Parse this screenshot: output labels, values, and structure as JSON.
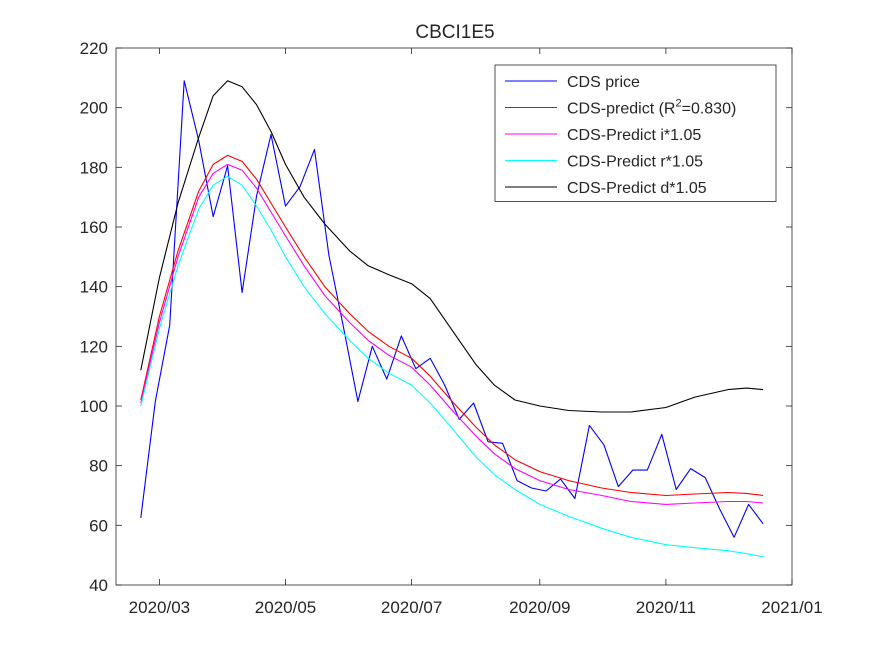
{
  "chart_data": {
    "type": "line",
    "title": "CBCI1E5",
    "xlabel": "",
    "ylabel": "",
    "x_unit": "date",
    "xlim": [
      "2020-02-09",
      "2021-01-01"
    ],
    "ylim": [
      40,
      220
    ],
    "yticks": [
      40,
      60,
      80,
      100,
      120,
      140,
      160,
      180,
      200,
      220
    ],
    "xticks": [
      "2020-03-01",
      "2020-05-01",
      "2020-07-01",
      "2020-09-01",
      "2020-11-01",
      "2021-01-01"
    ],
    "xtick_labels": [
      "2020/03",
      "2020/05",
      "2020/07",
      "2020/09",
      "2020/11",
      "2021/01"
    ],
    "grid": false,
    "legend_position": "top-right",
    "legend_r2": "0.830",
    "series": [
      {
        "name": "CDS price",
        "legend": {
          "before": "CDS price",
          "sup": "",
          "after": ""
        },
        "color": "#0000ff",
        "x": [
          "2020-02-21",
          "2020-02-28",
          "2020-03-06",
          "2020-03-13",
          "2020-03-20",
          "2020-03-27",
          "2020-04-03",
          "2020-04-10",
          "2020-04-17",
          "2020-04-24",
          "2020-05-01",
          "2020-05-08",
          "2020-05-15",
          "2020-05-22",
          "2020-05-29",
          "2020-06-05",
          "2020-06-12",
          "2020-06-19",
          "2020-06-26",
          "2020-07-03",
          "2020-07-10",
          "2020-07-17",
          "2020-07-24",
          "2020-07-31",
          "2020-08-07",
          "2020-08-14",
          "2020-08-21",
          "2020-08-28",
          "2020-09-04",
          "2020-09-11",
          "2020-09-18",
          "2020-09-25",
          "2020-10-02",
          "2020-10-09",
          "2020-10-16",
          "2020-10-23",
          "2020-10-30",
          "2020-11-06",
          "2020-11-13",
          "2020-11-20",
          "2020-11-27",
          "2020-12-04",
          "2020-12-11",
          "2020-12-18"
        ],
        "y": [
          62.5,
          101.5,
          127,
          209,
          189,
          163.5,
          180.5,
          138,
          170.5,
          191,
          167,
          173.5,
          186,
          150.5,
          126.5,
          101.5,
          120,
          109,
          123.5,
          112.5,
          116,
          107,
          95.5,
          101,
          88,
          87.5,
          75,
          72.5,
          71.5,
          75.5,
          69,
          93.5,
          87,
          73,
          78.5,
          78.5,
          90.5,
          72,
          79,
          76,
          65.5,
          56,
          67,
          60.5
        ]
      },
      {
        "name": "CDS-predict",
        "legend": {
          "before": "CDS-predict (R",
          "sup": "2",
          "after": "=0.830)"
        },
        "color": "#ff0000",
        "x": [
          "2020-02-21",
          "2020-03-01",
          "2020-03-10",
          "2020-03-20",
          "2020-03-27",
          "2020-04-03",
          "2020-04-10",
          "2020-04-17",
          "2020-04-24",
          "2020-05-01",
          "2020-05-10",
          "2020-05-20",
          "2020-06-01",
          "2020-06-10",
          "2020-06-20",
          "2020-07-01",
          "2020-07-10",
          "2020-07-20",
          "2020-08-01",
          "2020-08-10",
          "2020-08-20",
          "2020-09-01",
          "2020-09-15",
          "2020-10-01",
          "2020-10-15",
          "2020-11-01",
          "2020-11-15",
          "2020-12-01",
          "2020-12-10",
          "2020-12-18"
        ],
        "y": [
          102,
          130,
          152,
          172,
          181,
          184,
          182,
          176,
          168,
          160,
          150,
          140,
          131,
          125,
          120,
          116,
          110,
          102,
          93,
          87,
          82,
          78,
          75,
          72.5,
          71,
          70,
          70.5,
          71,
          70.7,
          70
        ]
      },
      {
        "name": "CDS-Predict i*1.05",
        "legend": {
          "before": "CDS-Predict i*1.05",
          "sup": "",
          "after": ""
        },
        "color": "#ff00ff",
        "x": [
          "2020-02-21",
          "2020-03-01",
          "2020-03-10",
          "2020-03-20",
          "2020-03-27",
          "2020-04-03",
          "2020-04-10",
          "2020-04-17",
          "2020-04-24",
          "2020-05-01",
          "2020-05-10",
          "2020-05-20",
          "2020-06-01",
          "2020-06-10",
          "2020-06-20",
          "2020-07-01",
          "2020-07-10",
          "2020-07-20",
          "2020-08-01",
          "2020-08-10",
          "2020-08-20",
          "2020-09-01",
          "2020-09-15",
          "2020-10-01",
          "2020-10-15",
          "2020-11-01",
          "2020-11-15",
          "2020-12-01",
          "2020-12-10",
          "2020-12-18"
        ],
        "y": [
          101,
          128,
          150,
          170,
          178,
          181,
          179,
          173,
          165,
          157,
          147,
          137,
          128,
          122,
          117,
          113,
          107,
          99,
          90,
          84,
          79,
          75,
          72,
          70,
          68,
          67,
          67.5,
          68,
          68,
          67.5
        ]
      },
      {
        "name": "CDS-Predict r*1.05",
        "legend": {
          "before": "CDS-Predict r*1.05",
          "sup": "",
          "after": ""
        },
        "color": "#00ffff",
        "x": [
          "2020-02-21",
          "2020-03-01",
          "2020-03-10",
          "2020-03-20",
          "2020-03-27",
          "2020-04-03",
          "2020-04-10",
          "2020-04-17",
          "2020-04-24",
          "2020-05-01",
          "2020-05-10",
          "2020-05-20",
          "2020-06-01",
          "2020-06-10",
          "2020-06-20",
          "2020-07-01",
          "2020-07-10",
          "2020-07-20",
          "2020-08-01",
          "2020-08-10",
          "2020-08-20",
          "2020-09-01",
          "2020-09-15",
          "2020-10-01",
          "2020-10-15",
          "2020-11-01",
          "2020-11-15",
          "2020-12-01",
          "2020-12-10",
          "2020-12-18"
        ],
        "y": [
          100,
          126,
          147,
          166,
          174,
          177,
          174,
          167,
          159,
          150,
          140,
          131,
          122,
          116,
          111,
          107,
          101,
          93,
          83,
          77,
          72,
          67,
          63,
          59,
          56,
          53.5,
          52.5,
          51.5,
          50.5,
          49.5
        ]
      },
      {
        "name": "CDS-Predict d*1.05",
        "legend": {
          "before": "CDS-Predict d*1.05",
          "sup": "",
          "after": ""
        },
        "color": "#000000",
        "x": [
          "2020-02-21",
          "2020-03-01",
          "2020-03-10",
          "2020-03-20",
          "2020-03-27",
          "2020-04-03",
          "2020-04-10",
          "2020-04-17",
          "2020-04-24",
          "2020-05-01",
          "2020-05-10",
          "2020-05-20",
          "2020-06-01",
          "2020-06-10",
          "2020-06-20",
          "2020-07-01",
          "2020-07-10",
          "2020-07-20",
          "2020-08-01",
          "2020-08-10",
          "2020-08-20",
          "2020-09-01",
          "2020-09-15",
          "2020-10-01",
          "2020-10-15",
          "2020-11-01",
          "2020-11-15",
          "2020-12-01",
          "2020-12-10",
          "2020-12-18"
        ],
        "y": [
          112,
          143,
          168,
          190,
          204,
          209,
          207,
          201,
          192,
          181,
          170,
          161,
          152,
          147,
          144,
          141,
          136,
          126,
          114,
          107,
          102,
          100,
          98.5,
          98,
          98,
          99.5,
          103,
          105.5,
          106,
          105.5
        ]
      }
    ]
  }
}
